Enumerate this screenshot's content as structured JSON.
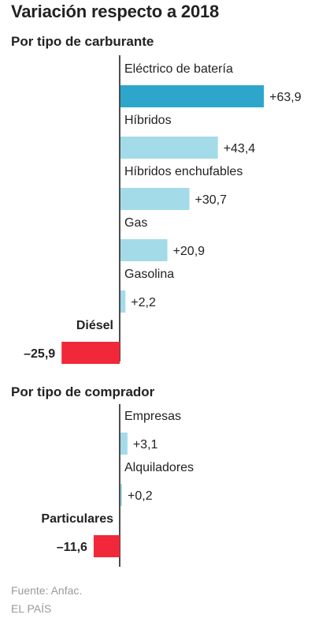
{
  "title": "Variación respecto a 2018",
  "source": "Fuente: Anfac.",
  "publisher": "EL PAÍS",
  "colors": {
    "highlight": "#2ea6cc",
    "positive": "#a3dbe9",
    "negative": "#f0283a",
    "axis": "#111111"
  },
  "chart_data": [
    {
      "type": "bar",
      "orientation": "horizontal",
      "subtitle": "Por tipo de carburante",
      "categories": [
        "Eléctrico de batería",
        "Híbridos",
        "Híbridos enchufables",
        "Gas",
        "Gasolina",
        "Diésel"
      ],
      "values": [
        63.9,
        43.4,
        30.7,
        20.9,
        2.2,
        -25.9
      ],
      "value_labels": [
        "+63,9",
        "+43,4",
        "+30,7",
        "+20,9",
        "+2,2",
        "–25,9"
      ],
      "bar_colors": [
        "highlight",
        "positive",
        "positive",
        "positive",
        "positive",
        "negative"
      ]
    },
    {
      "type": "bar",
      "orientation": "horizontal",
      "subtitle": "Por tipo de comprador",
      "categories": [
        "Empresas",
        "Alquiladores",
        "Particulares"
      ],
      "values": [
        3.1,
        0.2,
        -11.6
      ],
      "value_labels": [
        "+3,1",
        "+0,2",
        "–11,6"
      ],
      "bar_colors": [
        "positive",
        "positive",
        "negative"
      ]
    }
  ]
}
